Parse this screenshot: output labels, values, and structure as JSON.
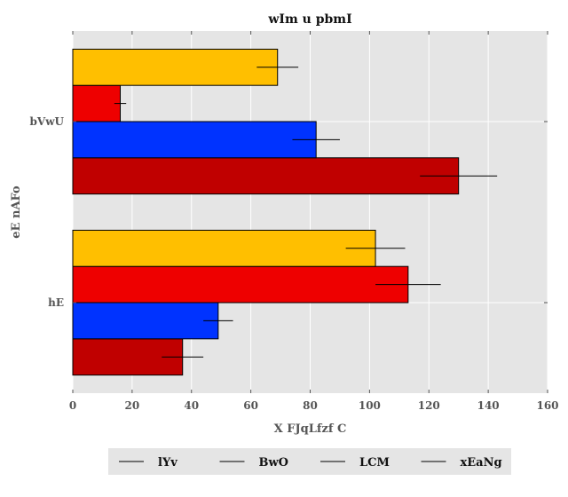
{
  "chart_data": {
    "type": "bar",
    "orientation": "horizontal",
    "title": "wIm u  pbmI",
    "xlabel": "X FJqLfzf C",
    "ylabel": "eE nAFo",
    "categories": [
      "hE",
      "bVwU"
    ],
    "xlim": [
      0,
      160
    ],
    "x_ticks": [
      0,
      20,
      40,
      60,
      80,
      100,
      120,
      140,
      160
    ],
    "grid": true,
    "error_bars": true,
    "legend_position": "bottom",
    "series": [
      {
        "name": "lYv",
        "color": "#c00000",
        "values": [
          37,
          130
        ],
        "errors": [
          7,
          13
        ]
      },
      {
        "name": "BwO",
        "color": "#0033ff",
        "values": [
          49,
          82
        ],
        "errors": [
          5,
          8
        ]
      },
      {
        "name": "LCM",
        "color": "#ee0000",
        "values": [
          113,
          16
        ],
        "errors": [
          11,
          2
        ]
      },
      {
        "name": "xEaNg",
        "color": "#ffbf00",
        "values": [
          102,
          69
        ],
        "errors": [
          10,
          7
        ]
      }
    ]
  }
}
